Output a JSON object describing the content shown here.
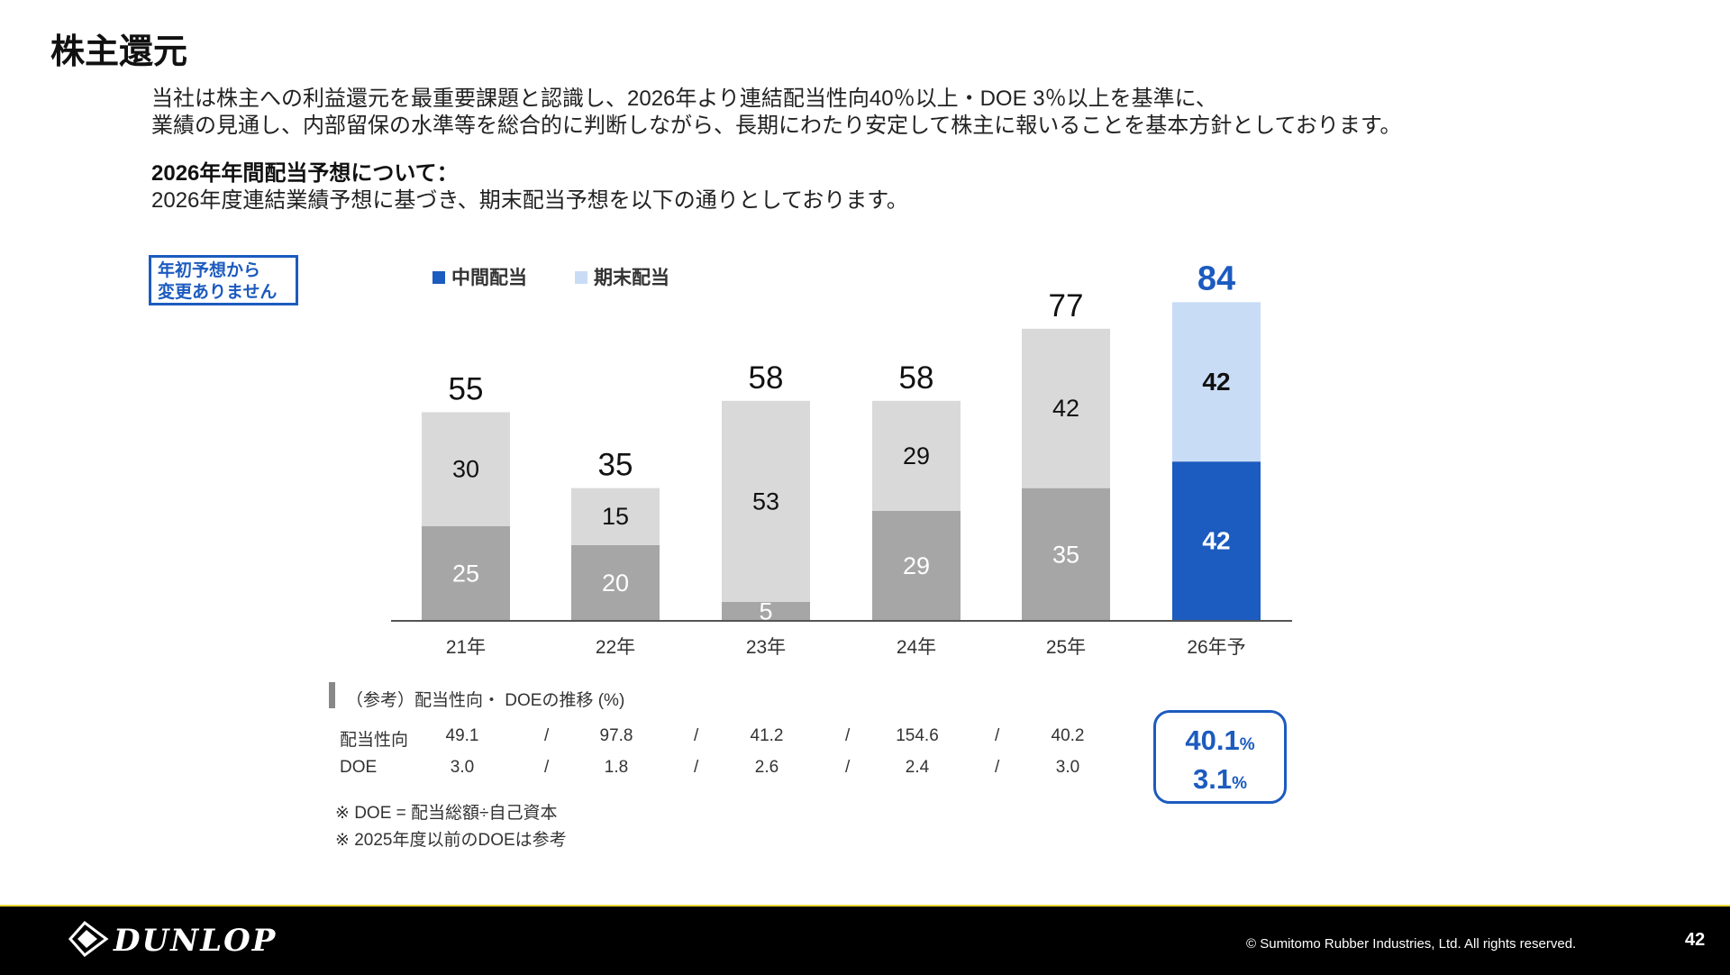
{
  "title": "株主還元",
  "intro_lines": [
    "当社は株主への利益還元を最重要課題と認識し、2026年より連結配当性向40％以上・DOE 3％以上を基準に、",
    "業績の見通し、内部留保の水準等を総合的に判断しながら、長期にわたり安定して株主に報いることを基本方針としております。"
  ],
  "forecast": {
    "heading": "2026年年間配当予想について：",
    "body": "2026年度連結業績予想に基づき、期末配当予想を以下の通りとしております。"
  },
  "badge": [
    "年初予想から",
    "変更ありません"
  ],
  "chart_data": {
    "type": "bar",
    "stacked": true,
    "categories": [
      "21年",
      "22年",
      "23年",
      "24年",
      "25年",
      "26年予"
    ],
    "series": [
      {
        "name": "中間配当",
        "values": [
          25,
          20,
          5,
          29,
          35,
          42
        ]
      },
      {
        "name": "期末配当",
        "values": [
          30,
          15,
          53,
          29,
          42,
          42
        ]
      }
    ],
    "totals": [
      55,
      35,
      58,
      58,
      77,
      84
    ],
    "ylim": [
      0,
      100
    ],
    "legend_position": "top-left",
    "grid": false,
    "colors": {
      "interim_actual": "#a6a6a6",
      "final_actual": "#d9d9d9",
      "interim_forecast": "#1c5bbf",
      "final_forecast": "#c9dcf6",
      "legend_interim": "#1c5bbf",
      "legend_final": "#c9dcf6"
    }
  },
  "reference": {
    "title": "（参考）配当性向・ DOEの推移 (%)",
    "separator": "/",
    "rows": [
      {
        "label": "配当性向",
        "values": [
          "49.1",
          "97.8",
          "41.2",
          "154.6",
          "40.2"
        ]
      },
      {
        "label": "DOE",
        "values": [
          "3.0",
          "1.8",
          "2.6",
          "2.4",
          "3.0"
        ]
      }
    ],
    "highlight": {
      "payout_value": "40.1",
      "doe_value": "3.1",
      "unit": "%"
    }
  },
  "notes": [
    "※ DOE = 配当総額÷自己資本",
    "※ 2025年度以前のDOEは参考"
  ],
  "footer": {
    "logo_text": "DUNLOP",
    "copyright": "© Sumitomo Rubber Industries, Ltd. All rights reserved.",
    "page_number": "42"
  }
}
